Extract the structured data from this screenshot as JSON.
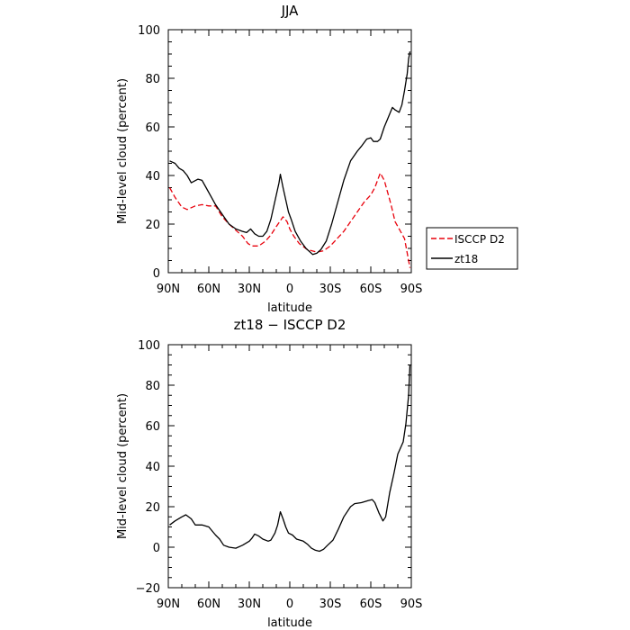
{
  "chart_data": [
    {
      "type": "line",
      "title": "JJA",
      "xlabel": "latitude",
      "ylabel": "Mid-level cloud (percent)",
      "xlim": [
        90,
        -90
      ],
      "ylim": [
        0,
        100
      ],
      "x_ticks": [
        90,
        60,
        30,
        0,
        -30,
        -60,
        -90
      ],
      "x_tick_labels": [
        "90N",
        "60N",
        "30N",
        "0",
        "30S",
        "60S",
        "90S"
      ],
      "y_ticks": [
        0,
        20,
        40,
        60,
        80,
        100
      ],
      "y_tick_labels": [
        "0",
        "20",
        "40",
        "60",
        "80",
        "100"
      ],
      "grid": false,
      "legend": {
        "placement": "outside-right",
        "entries": [
          {
            "name": "ISCCP D2",
            "color": "#e8000b",
            "dash": "dashed"
          },
          {
            "name": "zt18",
            "color": "#000000",
            "dash": "solid"
          }
        ]
      },
      "series": [
        {
          "name": "ISCCP D2",
          "color": "#e8000b",
          "dash": "dashed",
          "points": [
            [
              89,
              35
            ],
            [
              85,
              31
            ],
            [
              80,
              27
            ],
            [
              76,
              26
            ],
            [
              70,
              27.5
            ],
            [
              65,
              28
            ],
            [
              60,
              27.5
            ],
            [
              55,
              27.5
            ],
            [
              50,
              23
            ],
            [
              45,
              20
            ],
            [
              40,
              17.5
            ],
            [
              35,
              15
            ],
            [
              31,
              12
            ],
            [
              28,
              11
            ],
            [
              23,
              11
            ],
            [
              18,
              13
            ],
            [
              14,
              15.5
            ],
            [
              10,
              19
            ],
            [
              5,
              23
            ],
            [
              2,
              21
            ],
            [
              0,
              18
            ],
            [
              -3,
              15
            ],
            [
              -7,
              12
            ],
            [
              -13,
              9.5
            ],
            [
              -20,
              8.5
            ],
            [
              -25,
              9
            ],
            [
              -30,
              11
            ],
            [
              -35,
              14
            ],
            [
              -40,
              17
            ],
            [
              -45,
              21
            ],
            [
              -50,
              25
            ],
            [
              -55,
              29
            ],
            [
              -60,
              32
            ],
            [
              -63,
              35
            ],
            [
              -65,
              38
            ],
            [
              -67,
              41
            ],
            [
              -70,
              38
            ],
            [
              -73,
              32
            ],
            [
              -75,
              28
            ],
            [
              -78,
              21
            ],
            [
              -82,
              17
            ],
            [
              -85,
              14
            ],
            [
              -87,
              8
            ],
            [
              -89,
              2
            ]
          ]
        },
        {
          "name": "zt18",
          "color": "#000000",
          "dash": "solid",
          "points": [
            [
              89,
              46
            ],
            [
              85,
              45
            ],
            [
              82,
              43
            ],
            [
              79,
              42
            ],
            [
              76,
              40
            ],
            [
              73,
              37
            ],
            [
              68,
              38.5
            ],
            [
              65,
              38
            ],
            [
              62,
              35
            ],
            [
              58,
              31
            ],
            [
              55,
              28
            ],
            [
              50,
              24
            ],
            [
              45,
              20
            ],
            [
              40,
              18
            ],
            [
              35,
              17
            ],
            [
              32,
              16.5
            ],
            [
              29,
              18
            ],
            [
              26,
              16
            ],
            [
              23,
              15
            ],
            [
              20,
              15
            ],
            [
              17,
              17
            ],
            [
              14,
              22
            ],
            [
              12,
              27
            ],
            [
              10,
              32
            ],
            [
              8,
              37
            ],
            [
              7,
              40.5
            ],
            [
              5,
              35
            ],
            [
              3,
              30
            ],
            [
              1,
              25
            ],
            [
              -1,
              22
            ],
            [
              -4,
              17
            ],
            [
              -8,
              13
            ],
            [
              -12,
              10
            ],
            [
              -17,
              7.5
            ],
            [
              -20,
              8
            ],
            [
              -23,
              9.5
            ],
            [
              -27,
              13
            ],
            [
              -31,
              20
            ],
            [
              -36,
              30
            ],
            [
              -40,
              38
            ],
            [
              -45,
              46
            ],
            [
              -50,
              50
            ],
            [
              -53,
              52
            ],
            [
              -57,
              55
            ],
            [
              -60,
              55.5
            ],
            [
              -62,
              54
            ],
            [
              -65,
              54
            ],
            [
              -67,
              55
            ],
            [
              -70,
              60
            ],
            [
              -73,
              64
            ],
            [
              -76,
              68
            ],
            [
              -78,
              67
            ],
            [
              -81,
              66
            ],
            [
              -83,
              69
            ],
            [
              -85,
              75
            ],
            [
              -87,
              82
            ],
            [
              -88,
              88
            ],
            [
              -89,
              91
            ]
          ]
        }
      ]
    },
    {
      "type": "line",
      "title": "zt18 − ISCCP D2",
      "xlabel": "latitude",
      "ylabel": "Mid-level cloud (percent)",
      "xlim": [
        90,
        -90
      ],
      "ylim": [
        -20,
        100
      ],
      "x_ticks": [
        90,
        60,
        30,
        0,
        -30,
        -60,
        -90
      ],
      "x_tick_labels": [
        "90N",
        "60N",
        "30N",
        "0",
        "30S",
        "60S",
        "90S"
      ],
      "y_ticks": [
        -20,
        0,
        20,
        40,
        60,
        80,
        100
      ],
      "y_tick_labels": [
        "−20",
        "0",
        "20",
        "40",
        "60",
        "80",
        "100"
      ],
      "grid": false,
      "series": [
        {
          "color": "#000000",
          "dash": "solid",
          "points": [
            [
              89,
              11
            ],
            [
              85,
              13
            ],
            [
              80,
              15
            ],
            [
              77,
              16
            ],
            [
              73,
              14
            ],
            [
              70,
              11
            ],
            [
              65,
              11
            ],
            [
              60,
              10
            ],
            [
              55,
              6
            ],
            [
              52,
              4
            ],
            [
              49,
              1
            ],
            [
              45,
              0
            ],
            [
              40,
              -0.5
            ],
            [
              35,
              1
            ],
            [
              30,
              3
            ],
            [
              28,
              4.5
            ],
            [
              26,
              6.5
            ],
            [
              23,
              5.5
            ],
            [
              20,
              4
            ],
            [
              16,
              3
            ],
            [
              14,
              3.5
            ],
            [
              11,
              7
            ],
            [
              9,
              11
            ],
            [
              7,
              17.5
            ],
            [
              5,
              14
            ],
            [
              3,
              10
            ],
            [
              1,
              7
            ],
            [
              -2,
              6
            ],
            [
              -5,
              4
            ],
            [
              -10,
              3
            ],
            [
              -13,
              1.5
            ],
            [
              -16,
              -0.5
            ],
            [
              -19,
              -1.5
            ],
            [
              -22,
              -2
            ],
            [
              -25,
              -1
            ],
            [
              -28,
              1
            ],
            [
              -32,
              3.5
            ],
            [
              -36,
              9
            ],
            [
              -40,
              15
            ],
            [
              -45,
              20
            ],
            [
              -48,
              21.5
            ],
            [
              -53,
              22
            ],
            [
              -58,
              23
            ],
            [
              -61,
              23.5
            ],
            [
              -63,
              22
            ],
            [
              -66,
              17
            ],
            [
              -69,
              13
            ],
            [
              -71,
              15
            ],
            [
              -74,
              27
            ],
            [
              -77,
              36
            ],
            [
              -80,
              46
            ],
            [
              -84,
              52
            ],
            [
              -86,
              61
            ],
            [
              -88,
              75
            ],
            [
              -89,
              90
            ]
          ]
        }
      ]
    }
  ]
}
